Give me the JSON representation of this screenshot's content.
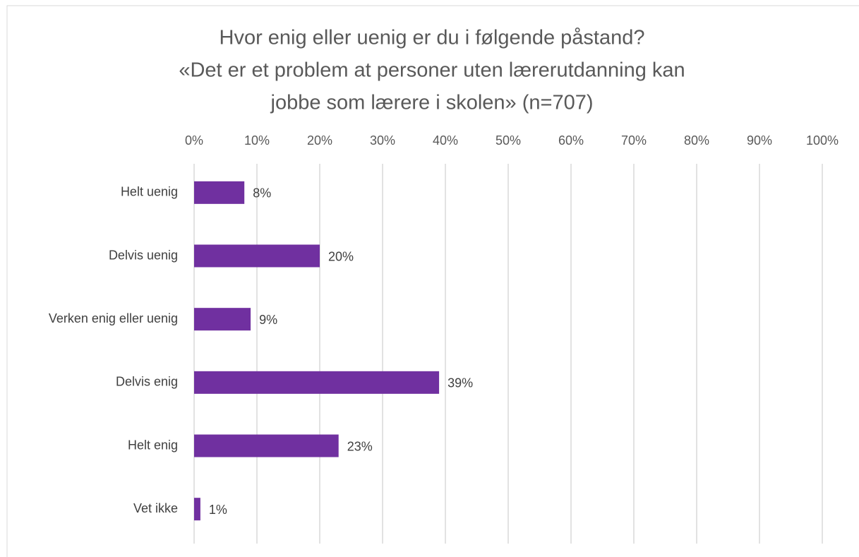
{
  "chart_data": {
    "type": "barh",
    "title": [
      "Hvor enig eller uenig er du i følgende påstand?",
      "«Det er et problem at personer uten lærerutdanning kan",
      "jobbe som lærere i skolen» (n=707)"
    ],
    "categories": [
      "Helt uenig",
      "Delvis uenig",
      "Verken enig eller uenig",
      "Delvis enig",
      "Helt enig",
      "Vet ikke"
    ],
    "values": [
      8,
      20,
      9,
      39,
      23,
      1
    ],
    "value_labels": [
      "8%",
      "20%",
      "9%",
      "39%",
      "23%",
      "1%"
    ],
    "color": "#7030a0",
    "xlim": [
      0,
      100
    ],
    "xticks": [
      {
        "value": 0,
        "label": "0%"
      },
      {
        "value": 10,
        "label": "10%"
      },
      {
        "value": 20,
        "label": "20%"
      },
      {
        "value": 30,
        "label": "30%"
      },
      {
        "value": 40,
        "label": "40%"
      },
      {
        "value": 50,
        "label": "50%"
      },
      {
        "value": 60,
        "label": "60%"
      },
      {
        "value": 70,
        "label": "70%"
      },
      {
        "value": 80,
        "label": "80%"
      },
      {
        "value": 90,
        "label": "90%"
      },
      {
        "value": 100,
        "label": "100%"
      }
    ],
    "grid": true
  }
}
